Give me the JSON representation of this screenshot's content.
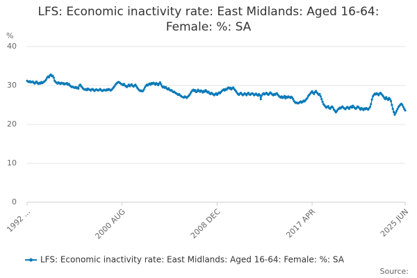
{
  "chart_data": {
    "type": "line",
    "title": "LFS: Economic inactivity rate: East Midlands: Aged 16-64: Female: %: SA",
    "y_label": "%",
    "source": "Source:",
    "ylim": [
      0,
      40
    ],
    "yticks": [
      0,
      10,
      20,
      30,
      40
    ],
    "grid": true,
    "categories": [
      "1992 ...",
      null,
      null,
      null,
      null,
      null,
      null,
      null,
      null,
      null,
      null,
      null,
      null,
      null,
      null,
      null,
      null,
      null,
      null,
      null,
      null,
      null,
      null,
      null,
      null,
      null,
      null,
      null,
      null,
      null,
      null,
      null,
      null,
      null,
      null,
      null,
      null,
      null,
      null,
      null,
      null,
      null,
      null,
      null,
      null,
      null,
      null,
      null,
      null,
      null,
      null,
      null,
      null,
      null,
      null,
      null,
      null,
      null,
      null,
      null,
      null,
      null,
      null,
      null,
      null,
      null,
      null,
      null,
      null,
      null,
      null,
      null,
      null,
      null,
      null,
      null,
      null,
      null,
      null,
      null,
      null,
      null,
      null,
      null,
      null,
      null,
      null,
      null,
      null,
      null,
      null,
      null,
      null,
      null,
      null,
      null,
      null,
      null,
      null,
      null,
      "2000 AUG",
      null,
      null,
      null,
      null,
      null,
      null,
      null,
      null,
      null,
      null,
      null,
      null,
      null,
      null,
      null,
      null,
      null,
      null,
      null,
      null,
      null,
      null,
      null,
      null,
      null,
      null,
      null,
      null,
      null,
      null,
      null,
      null,
      null,
      null,
      null,
      null,
      null,
      null,
      null,
      null,
      null,
      null,
      null,
      null,
      null,
      null,
      null,
      null,
      null,
      null,
      null,
      null,
      null,
      null,
      null,
      null,
      null,
      null,
      null,
      null,
      null,
      null,
      null,
      null,
      null,
      null,
      null,
      null,
      null,
      null,
      null,
      null,
      null,
      null,
      null,
      null,
      null,
      null,
      null,
      null,
      null,
      null,
      null,
      null,
      null,
      null,
      null,
      null,
      null,
      null,
      null,
      null,
      null,
      null,
      null,
      null,
      null,
      null,
      null,
      "2008 DEC",
      null,
      null,
      null,
      null,
      null,
      null,
      null,
      null,
      null,
      null,
      null,
      null,
      null,
      null,
      null,
      null,
      null,
      null,
      null,
      null,
      null,
      null,
      null,
      null,
      null,
      null,
      null,
      null,
      null,
      null,
      null,
      null,
      null,
      null,
      null,
      null,
      null,
      null,
      null,
      null,
      null,
      null,
      null,
      null,
      null,
      null,
      null,
      null,
      null,
      null,
      null,
      null,
      null,
      null,
      null,
      null,
      null,
      null,
      null,
      null,
      null,
      null,
      null,
      null,
      null,
      null,
      null,
      null,
      null,
      null,
      null,
      null,
      null,
      null,
      null,
      null,
      null,
      null,
      null,
      null,
      null,
      null,
      null,
      null,
      null,
      null,
      null,
      null,
      null,
      null,
      null,
      null,
      null,
      null,
      null,
      null,
      null,
      null,
      null,
      "2017 APR",
      null,
      null,
      null,
      null,
      null,
      null,
      null,
      null,
      null,
      null,
      null,
      null,
      null,
      null,
      null,
      null,
      null,
      null,
      null,
      null,
      null,
      null,
      null,
      null,
      null,
      null,
      null,
      null,
      null,
      null,
      null,
      null,
      null,
      null,
      null,
      null,
      null,
      null,
      null,
      null,
      null,
      null,
      null,
      null,
      null,
      null,
      null,
      null,
      null,
      null,
      null,
      null,
      null,
      null,
      null,
      null,
      null,
      null,
      null,
      null,
      null,
      null,
      null,
      null,
      null,
      null,
      null,
      null,
      null,
      null,
      null,
      null,
      null,
      null,
      null,
      null,
      null,
      null,
      null,
      null,
      null,
      null,
      null,
      null,
      null,
      null,
      null,
      null,
      null,
      null,
      null,
      null,
      null,
      null,
      null,
      null,
      null,
      "2025 JUN"
    ],
    "series": [
      {
        "name": "LFS: Economic inactivity rate: East Midlands: Aged 16-64: Female: %: SA",
        "color": "#0b7ab8",
        "values": [
          31.2,
          31.0,
          30.9,
          31.1,
          30.8,
          30.9,
          31.0,
          30.7,
          30.5,
          30.8,
          31.0,
          30.6,
          30.4,
          30.7,
          30.5,
          30.9,
          30.6,
          30.8,
          31.0,
          31.2,
          31.5,
          32.0,
          32.3,
          32.1,
          32.6,
          32.8,
          32.4,
          32.5,
          32.0,
          31.2,
          30.9,
          30.7,
          30.5,
          30.8,
          30.6,
          30.4,
          30.7,
          30.5,
          30.6,
          30.3,
          30.5,
          30.4,
          30.6,
          30.2,
          30.4,
          30.0,
          29.8,
          29.6,
          29.7,
          29.5,
          29.4,
          29.6,
          29.3,
          29.5,
          29.2,
          30.0,
          30.2,
          29.8,
          29.5,
          29.2,
          29.0,
          28.9,
          29.1,
          28.8,
          29.2,
          29.0,
          28.9,
          28.7,
          29.0,
          29.1,
          28.8,
          28.6,
          28.9,
          29.0,
          28.8,
          28.7,
          28.9,
          29.1,
          28.8,
          28.6,
          28.7,
          28.9,
          28.8,
          28.7,
          29.0,
          28.8,
          29.1,
          28.9,
          28.7,
          28.9,
          29.2,
          29.5,
          29.8,
          30.2,
          30.5,
          30.7,
          30.9,
          30.8,
          30.6,
          30.4,
          30.3,
          30.1,
          30.4,
          30.0,
          29.8,
          29.6,
          29.9,
          30.2,
          29.8,
          30.1,
          30.3,
          29.9,
          29.7,
          30.0,
          30.2,
          29.8,
          29.4,
          29.1,
          28.8,
          28.6,
          28.7,
          28.5,
          28.6,
          29.0,
          29.5,
          29.9,
          30.2,
          30.0,
          30.3,
          30.5,
          30.2,
          30.6,
          30.4,
          30.7,
          30.5,
          30.2,
          30.6,
          30.4,
          30.1,
          30.5,
          30.8,
          30.3,
          29.8,
          29.5,
          29.7,
          29.4,
          29.6,
          29.2,
          29.0,
          29.3,
          28.9,
          28.7,
          28.8,
          28.5,
          28.3,
          28.4,
          28.1,
          28.0,
          27.8,
          27.6,
          27.8,
          27.5,
          27.3,
          27.1,
          27.0,
          26.9,
          27.2,
          27.0,
          26.8,
          27.1,
          27.3,
          27.6,
          28.0,
          28.4,
          28.7,
          28.9,
          28.6,
          28.8,
          28.3,
          28.5,
          28.9,
          28.6,
          28.4,
          28.7,
          28.5,
          28.2,
          28.6,
          28.4,
          28.8,
          28.5,
          28.2,
          28.4,
          28.0,
          27.8,
          28.1,
          27.9,
          27.7,
          27.5,
          27.8,
          28.0,
          27.6,
          27.9,
          28.2,
          28.0,
          28.3,
          28.6,
          28.8,
          29.0,
          28.7,
          29.1,
          28.9,
          29.3,
          29.5,
          29.2,
          29.4,
          29.0,
          29.3,
          29.5,
          29.1,
          28.8,
          28.5,
          28.1,
          27.8,
          27.6,
          27.9,
          28.1,
          27.8,
          27.5,
          27.7,
          28.0,
          27.8,
          27.5,
          27.9,
          28.1,
          27.7,
          27.6,
          27.9,
          28.0,
          27.8,
          27.5,
          27.7,
          27.9,
          27.6,
          27.4,
          27.8,
          27.5,
          26.5,
          27.4,
          27.8,
          28.0,
          27.7,
          27.9,
          28.1,
          27.8,
          27.6,
          27.9,
          28.2,
          28.0,
          27.7,
          27.5,
          27.8,
          27.6,
          27.9,
          28.0,
          27.6,
          27.3,
          27.1,
          26.9,
          27.2,
          26.8,
          27.0,
          27.3,
          26.7,
          27.1,
          26.9,
          27.2,
          27.0,
          26.8,
          27.1,
          26.9,
          26.5,
          26.0,
          25.7,
          25.5,
          25.6,
          25.4,
          25.5,
          25.7,
          25.9,
          25.6,
          25.8,
          26.1,
          25.9,
          26.2,
          26.5,
          26.8,
          27.3,
          27.6,
          27.9,
          28.2,
          28.5,
          28.1,
          27.8,
          28.3,
          28.6,
          28.2,
          27.9,
          27.6,
          27.8,
          27.2,
          26.5,
          25.8,
          25.2,
          24.9,
          24.6,
          24.3,
          24.5,
          24.7,
          24.2,
          24.0,
          24.4,
          24.6,
          24.3,
          23.8,
          23.5,
          23.1,
          23.4,
          23.8,
          24.0,
          24.3,
          24.1,
          24.4,
          24.6,
          24.3,
          24.1,
          23.9,
          24.2,
          24.5,
          24.3,
          24.0,
          24.4,
          24.6,
          24.3,
          24.8,
          24.5,
          24.2,
          24.0,
          24.3,
          24.6,
          24.4,
          24.1,
          23.8,
          24.2,
          24.0,
          23.7,
          24.1,
          23.9,
          24.2,
          24.0,
          23.8,
          24.1,
          24.5,
          25.2,
          26.4,
          27.2,
          27.6,
          27.9,
          27.7,
          28.0,
          27.8,
          27.5,
          27.9,
          28.1,
          27.8,
          27.5,
          27.2,
          26.8,
          26.5,
          27.0,
          26.6,
          26.3,
          26.8,
          26.5,
          26.0,
          25.0,
          24.0,
          23.2,
          22.5,
          23.0,
          23.5,
          24.0,
          24.5,
          24.8,
          25.1,
          25.3,
          25.0,
          24.5,
          24.0,
          23.6
        ]
      }
    ]
  }
}
